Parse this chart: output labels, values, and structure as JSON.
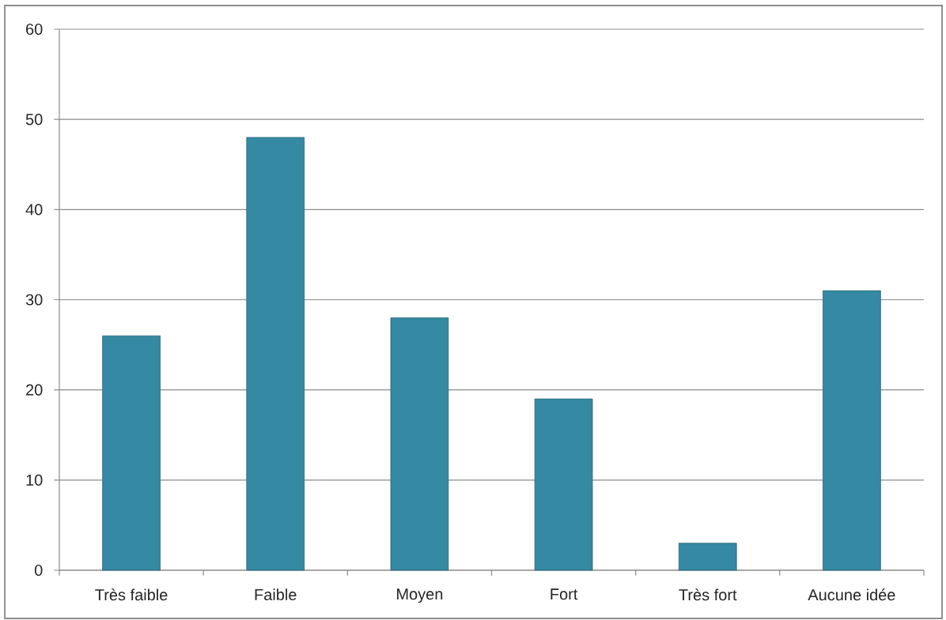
{
  "chart_data": {
    "type": "bar",
    "categories": [
      "Très faible",
      "Faible",
      "Moyen",
      "Fort",
      "Très fort",
      "Aucune idée"
    ],
    "values": [
      26,
      48,
      28,
      19,
      3,
      31
    ],
    "color": "#3589a2",
    "ylim": [
      0,
      60
    ],
    "yticks": [
      0,
      10,
      20,
      30,
      40,
      50,
      60
    ],
    "grid": "y"
  }
}
